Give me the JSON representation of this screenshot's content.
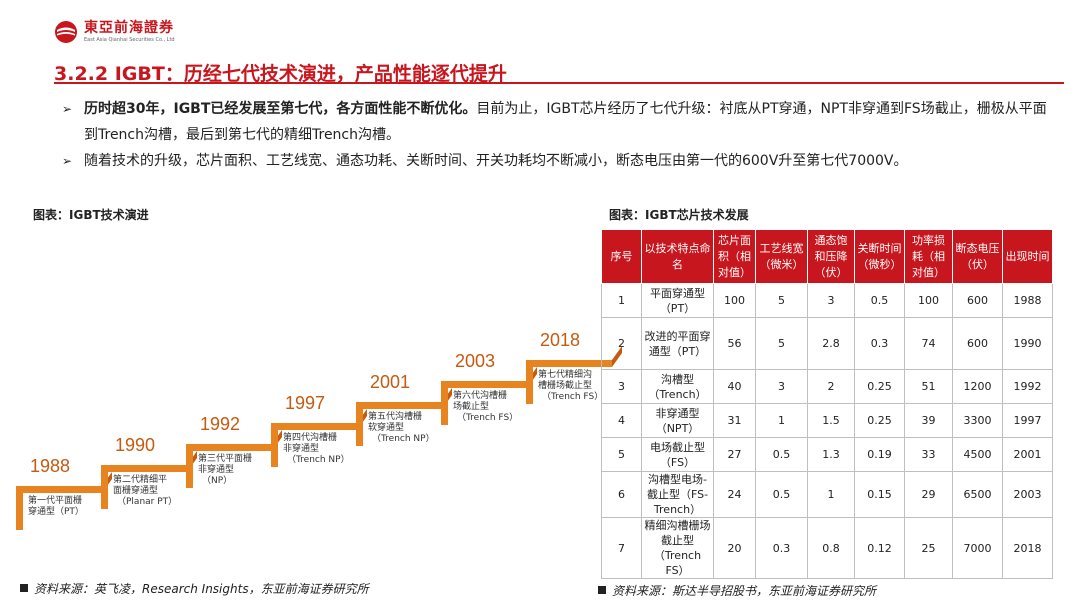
{
  "header": {
    "brand_name": "東亞前海證券",
    "brand_sub": "East Asia Qianhai Securities Co., Ltd"
  },
  "title": "3.2.2 IGBT：历经七代技术演进，产品性能逐代提升",
  "bullets": [
    {
      "bold": "历时超30年，IGBT已经发展至第七代，各方面性能不断优化。",
      "text": "目前为止，IGBT芯片经历了七代升级：衬底从PT穿通，NPT非穿通到FS场截止，栅极从平面到Trench沟槽，最后到第七代的精细Trench沟槽。"
    },
    {
      "bold": "",
      "text": "随着技术的升级，芯片面积、工艺线宽、通态功耗、关断时间、开关功耗均不断减小，断态电压由第一代的600V升至第七代7000V。"
    }
  ],
  "left_figure": {
    "title": "图表：IGBT技术演进",
    "source": "资料来源：英飞凌，Research Insights，东亚前海证券研究所",
    "steps": [
      {
        "year": "1988",
        "label": [
          "第一代平面栅",
          "穿通型（PT）"
        ]
      },
      {
        "year": "1990",
        "label": [
          "第二代精细平",
          "面栅穿通型",
          "（Planar PT）"
        ]
      },
      {
        "year": "1992",
        "label": [
          "第三代平面栅",
          "非穿通型",
          "（NP）"
        ]
      },
      {
        "year": "1997",
        "label": [
          "第四代沟槽栅",
          "非穿通型",
          "（Trench NP）"
        ]
      },
      {
        "year": "2001",
        "label": [
          "第五代沟槽栅",
          "软穿通型",
          "（Trench NP）"
        ]
      },
      {
        "year": "2003",
        "label": [
          "第六代沟槽栅",
          "场截止型",
          "（Trench FS）"
        ]
      },
      {
        "year": "2018",
        "label": [
          "第七代精细沟",
          "槽栅场截止型",
          "（Trench FS）"
        ]
      }
    ]
  },
  "right_figure": {
    "title": "图表：IGBT芯片技术发展",
    "source": "资料来源：斯达半导招股书，东亚前海证券研究所",
    "headers": [
      "序号",
      "以技术特点命名",
      "芯片面积（相对值）",
      "工艺线宽（微米）",
      "通态饱和压降（伏）",
      "关断时间（微秒）",
      "功率损耗（相对值）",
      "断态电压（伏）",
      "出现时间"
    ],
    "rows": [
      [
        "1",
        "平面穿通型（PT）",
        "100",
        "5",
        "3",
        "0.5",
        "100",
        "600",
        "1988"
      ],
      [
        "2",
        "改进的平面穿通型（PT）",
        "56",
        "5",
        "2.8",
        "0.3",
        "74",
        "600",
        "1990"
      ],
      [
        "3",
        "沟槽型（Trench）",
        "40",
        "3",
        "2",
        "0.25",
        "51",
        "1200",
        "1992"
      ],
      [
        "4",
        "非穿通型（NPT）",
        "31",
        "1",
        "1.5",
        "0.25",
        "39",
        "3300",
        "1997"
      ],
      [
        "5",
        "电场截止型（FS）",
        "27",
        "0.5",
        "1.3",
        "0.19",
        "33",
        "4500",
        "2001"
      ],
      [
        "6",
        "沟槽型电场-截止型（FS-Trench）",
        "24",
        "0.5",
        "1",
        "0.15",
        "29",
        "6500",
        "2003"
      ],
      [
        "7",
        "精细沟槽栅场截止型（Trench FS）",
        "20",
        "0.3",
        "0.8",
        "0.12",
        "25",
        "7000",
        "2018"
      ]
    ]
  },
  "colors": {
    "brand_red": "#c8161e",
    "timeline_orange": "#e8841f",
    "year_orange": "#c55a11"
  }
}
